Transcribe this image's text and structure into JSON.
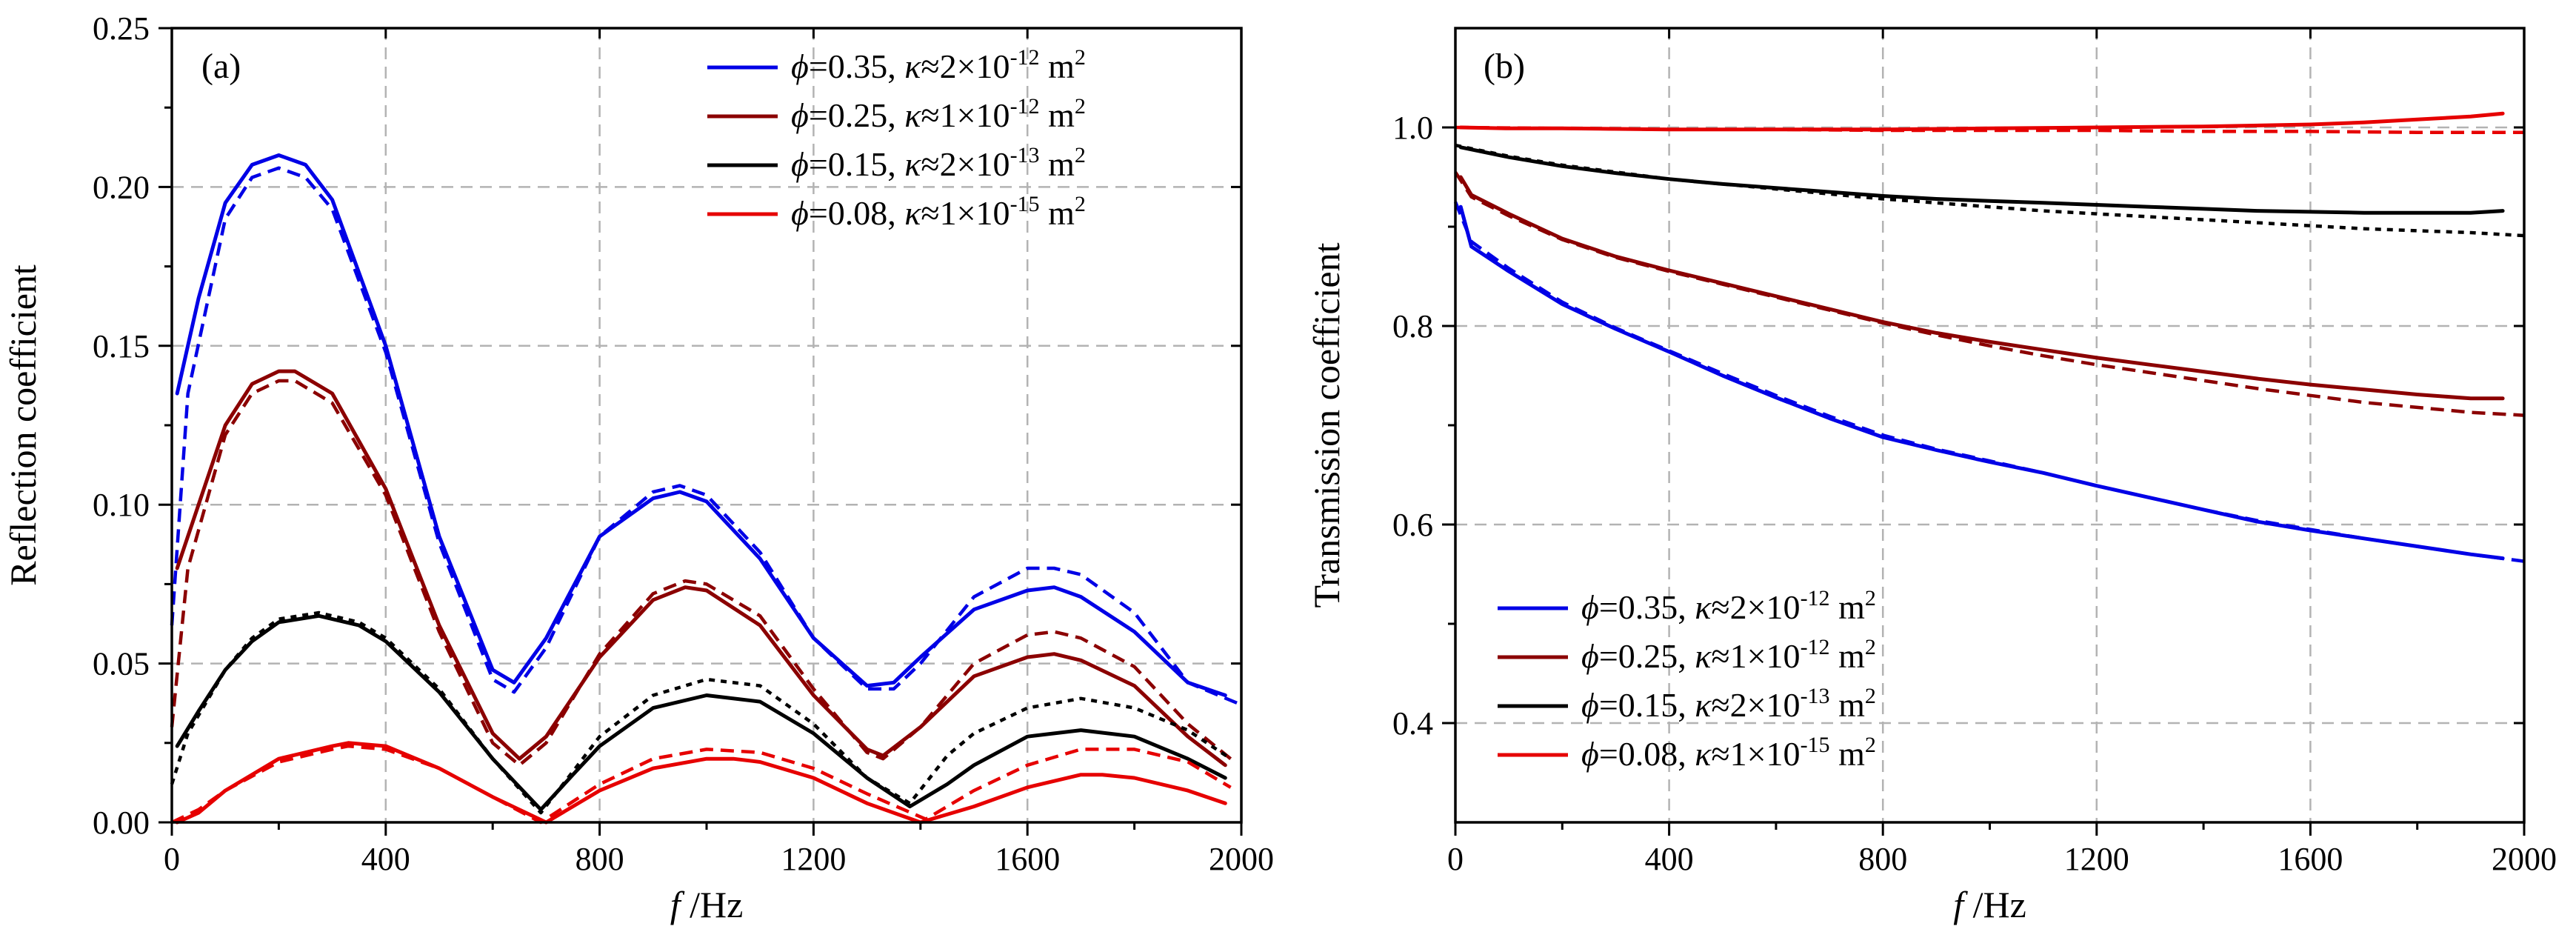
{
  "chart_data": [
    {
      "type": "line",
      "panel_label": "(a)",
      "xlabel": {
        "italic": "f",
        "rest": " /Hz"
      },
      "ylabel": "Reflection coefficient",
      "xlim": [
        0,
        2000
      ],
      "ylim": [
        0,
        0.25
      ],
      "xticks": [
        0,
        400,
        800,
        1200,
        1600,
        2000
      ],
      "xtick_labels": [
        "0",
        "400",
        "800",
        "1200",
        "1600",
        "2000"
      ],
      "yticks": [
        0,
        0.05,
        0.1,
        0.15,
        0.2,
        0.25
      ],
      "ytick_labels": [
        "0.00",
        "0.05",
        "0.10",
        "0.15",
        "0.20",
        "0.25"
      ],
      "grid": true,
      "legend_position": "top-right",
      "series": [
        {
          "name": "φ=0.35, κ≈2×10-12 m2",
          "color": "#0000e6",
          "style": "solid",
          "x": [
            10,
            50,
            100,
            150,
            200,
            250,
            300,
            400,
            500,
            600,
            640,
            700,
            800,
            900,
            950,
            1000,
            1100,
            1200,
            1300,
            1350,
            1400,
            1500,
            1600,
            1650,
            1700,
            1800,
            1900,
            1970
          ],
          "y": [
            0.135,
            0.165,
            0.195,
            0.207,
            0.21,
            0.207,
            0.196,
            0.15,
            0.09,
            0.048,
            0.044,
            0.058,
            0.09,
            0.102,
            0.104,
            0.101,
            0.083,
            0.058,
            0.043,
            0.044,
            0.052,
            0.067,
            0.073,
            0.074,
            0.071,
            0.06,
            0.044,
            0.04
          ]
        },
        {
          "name": "φ=0.35, κ≈2×10-12 m2 (dashed)",
          "color": "#0000e6",
          "style": "dashed",
          "x": [
            0,
            30,
            100,
            150,
            200,
            250,
            300,
            400,
            500,
            600,
            640,
            700,
            800,
            900,
            950,
            1000,
            1100,
            1200,
            1300,
            1350,
            1400,
            1500,
            1600,
            1650,
            1700,
            1800,
            1900,
            2000
          ],
          "y": [
            0.062,
            0.135,
            0.19,
            0.203,
            0.206,
            0.203,
            0.193,
            0.148,
            0.088,
            0.045,
            0.041,
            0.055,
            0.09,
            0.104,
            0.106,
            0.103,
            0.085,
            0.058,
            0.042,
            0.042,
            0.05,
            0.071,
            0.08,
            0.08,
            0.078,
            0.066,
            0.044,
            0.037
          ]
        },
        {
          "name": "φ=0.25, κ≈1×10-12 m2",
          "color": "#8b0000",
          "style": "solid",
          "x": [
            10,
            50,
            100,
            150,
            200,
            230,
            300,
            400,
            500,
            600,
            650,
            700,
            800,
            900,
            960,
            1000,
            1100,
            1200,
            1300,
            1330,
            1400,
            1500,
            1600,
            1650,
            1700,
            1800,
            1900,
            1970
          ],
          "y": [
            0.08,
            0.1,
            0.125,
            0.138,
            0.142,
            0.142,
            0.135,
            0.105,
            0.062,
            0.028,
            0.02,
            0.027,
            0.052,
            0.07,
            0.074,
            0.073,
            0.062,
            0.04,
            0.023,
            0.021,
            0.03,
            0.046,
            0.052,
            0.053,
            0.051,
            0.043,
            0.027,
            0.018
          ]
        },
        {
          "name": "φ=0.25, κ≈1×10-12 m2 (dashed)",
          "color": "#8b0000",
          "style": "dashed",
          "x": [
            0,
            30,
            100,
            150,
            200,
            230,
            300,
            400,
            500,
            600,
            650,
            700,
            800,
            900,
            960,
            1000,
            1100,
            1200,
            1300,
            1330,
            1400,
            1500,
            1600,
            1650,
            1700,
            1800,
            1900,
            1980
          ],
          "y": [
            0.03,
            0.08,
            0.122,
            0.135,
            0.139,
            0.139,
            0.132,
            0.103,
            0.06,
            0.025,
            0.018,
            0.025,
            0.053,
            0.072,
            0.076,
            0.075,
            0.065,
            0.042,
            0.022,
            0.02,
            0.03,
            0.05,
            0.059,
            0.06,
            0.058,
            0.049,
            0.031,
            0.02
          ]
        },
        {
          "name": "φ=0.15, κ≈2×10-13 m2",
          "color": "#000000",
          "style": "solid",
          "x": [
            10,
            50,
            100,
            150,
            200,
            275,
            350,
            400,
            500,
            600,
            690,
            750,
            800,
            900,
            1000,
            1100,
            1200,
            1300,
            1380,
            1450,
            1500,
            1600,
            1700,
            1800,
            1900,
            1970
          ],
          "y": [
            0.024,
            0.035,
            0.048,
            0.057,
            0.063,
            0.065,
            0.062,
            0.057,
            0.041,
            0.02,
            0.004,
            0.015,
            0.024,
            0.036,
            0.04,
            0.038,
            0.028,
            0.014,
            0.005,
            0.012,
            0.018,
            0.027,
            0.029,
            0.027,
            0.02,
            0.014
          ]
        },
        {
          "name": "φ=0.15, κ≈2×10-13 m2 (dashed)",
          "color": "#000000",
          "style": "dotted",
          "x": [
            0,
            30,
            100,
            150,
            200,
            275,
            350,
            400,
            500,
            600,
            690,
            750,
            800,
            900,
            1000,
            1100,
            1200,
            1300,
            1380,
            1450,
            1500,
            1600,
            1700,
            1800,
            1900,
            1980
          ],
          "y": [
            0.012,
            0.028,
            0.048,
            0.058,
            0.064,
            0.066,
            0.063,
            0.058,
            0.042,
            0.02,
            0.003,
            0.016,
            0.027,
            0.04,
            0.045,
            0.043,
            0.031,
            0.014,
            0.006,
            0.021,
            0.028,
            0.036,
            0.039,
            0.036,
            0.029,
            0.02
          ]
        },
        {
          "name": "φ=0.08, κ≈1×10-15 m2",
          "color": "#e60000",
          "style": "solid",
          "x": [
            10,
            50,
            100,
            200,
            300,
            330,
            400,
            500,
            600,
            700,
            800,
            900,
            1000,
            1050,
            1100,
            1200,
            1300,
            1400,
            1500,
            1600,
            1700,
            1740,
            1800,
            1900,
            1970
          ],
          "y": [
            0.0,
            0.003,
            0.01,
            0.02,
            0.024,
            0.025,
            0.024,
            0.017,
            0.008,
            0.0,
            0.01,
            0.017,
            0.02,
            0.02,
            0.019,
            0.014,
            0.006,
            0.0,
            0.005,
            0.011,
            0.015,
            0.015,
            0.014,
            0.01,
            0.006
          ]
        },
        {
          "name": "φ=0.08, κ≈1×10-15 m2 (dashed)",
          "color": "#e60000",
          "style": "dashed",
          "x": [
            0,
            50,
            100,
            200,
            300,
            330,
            400,
            500,
            600,
            690,
            800,
            900,
            1000,
            1100,
            1200,
            1300,
            1410,
            1500,
            1600,
            1700,
            1800,
            1900,
            1980
          ],
          "y": [
            0.0,
            0.004,
            0.01,
            0.019,
            0.023,
            0.024,
            0.023,
            0.017,
            0.008,
            0.0,
            0.012,
            0.02,
            0.023,
            0.022,
            0.017,
            0.009,
            0.001,
            0.01,
            0.018,
            0.023,
            0.023,
            0.019,
            0.011
          ]
        }
      ]
    },
    {
      "type": "line",
      "panel_label": "(b)",
      "xlabel": {
        "italic": "f",
        "rest": " /Hz"
      },
      "ylabel": "Transmission coefficient",
      "xlim": [
        0,
        2000
      ],
      "ylim": [
        0.3,
        1.1
      ],
      "xticks": [
        0,
        400,
        800,
        1200,
        1600,
        2000
      ],
      "xtick_labels": [
        "0",
        "400",
        "800",
        "1200",
        "1600",
        "2000"
      ],
      "yticks": [
        0.4,
        0.6,
        0.8,
        1.0
      ],
      "ytick_labels": [
        "0.4",
        "0.6",
        "0.8",
        "1.0"
      ],
      "grid": true,
      "legend_position": "bottom-left",
      "series": [
        {
          "name": "φ=0.35, κ≈2×10-12 m2",
          "color": "#0000e6",
          "style": "solid",
          "x": [
            10,
            30,
            100,
            200,
            300,
            400,
            500,
            600,
            700,
            800,
            900,
            1000,
            1100,
            1200,
            1300,
            1400,
            1500,
            1600,
            1700,
            1800,
            1900,
            1960
          ],
          "y": [
            0.92,
            0.88,
            0.855,
            0.822,
            0.797,
            0.774,
            0.75,
            0.728,
            0.707,
            0.688,
            0.675,
            0.663,
            0.652,
            0.639,
            0.627,
            0.615,
            0.603,
            0.594,
            0.586,
            0.578,
            0.57,
            0.566
          ]
        },
        {
          "name": "φ=0.35, κ≈2×10-12 m2 (dashed)",
          "color": "#0000e6",
          "style": "dashed",
          "x": [
            0,
            30,
            100,
            200,
            300,
            400,
            500,
            600,
            700,
            800,
            900,
            1000,
            1100,
            1200,
            1300,
            1400,
            1500,
            1600,
            1700,
            1800,
            1900,
            2000
          ],
          "y": [
            0.925,
            0.885,
            0.858,
            0.824,
            0.798,
            0.775,
            0.752,
            0.73,
            0.709,
            0.69,
            0.676,
            0.664,
            0.652,
            0.639,
            0.627,
            0.615,
            0.604,
            0.595,
            0.586,
            0.578,
            0.57,
            0.563
          ]
        },
        {
          "name": "φ=0.25, κ≈1×10-12 m2",
          "color": "#8b0000",
          "style": "solid",
          "x": [
            10,
            30,
            100,
            200,
            300,
            400,
            500,
            600,
            700,
            800,
            900,
            1000,
            1100,
            1200,
            1300,
            1400,
            1500,
            1600,
            1700,
            1800,
            1900,
            1960
          ],
          "y": [
            0.95,
            0.932,
            0.913,
            0.888,
            0.87,
            0.856,
            0.843,
            0.83,
            0.817,
            0.804,
            0.793,
            0.784,
            0.776,
            0.768,
            0.761,
            0.754,
            0.747,
            0.741,
            0.736,
            0.731,
            0.727,
            0.727
          ]
        },
        {
          "name": "φ=0.25, κ≈1×10-12 m2 (dashed)",
          "color": "#8b0000",
          "style": "dashed",
          "x": [
            0,
            30,
            100,
            200,
            300,
            400,
            500,
            600,
            700,
            800,
            900,
            1000,
            1100,
            1200,
            1300,
            1400,
            1500,
            1600,
            1700,
            1800,
            1900,
            2000
          ],
          "y": [
            0.955,
            0.93,
            0.911,
            0.887,
            0.869,
            0.855,
            0.842,
            0.829,
            0.816,
            0.803,
            0.791,
            0.78,
            0.77,
            0.761,
            0.753,
            0.745,
            0.737,
            0.73,
            0.723,
            0.718,
            0.713,
            0.71
          ]
        },
        {
          "name": "φ=0.15, κ≈2×10-13 m2",
          "color": "#000000",
          "style": "solid",
          "x": [
            10,
            100,
            200,
            300,
            400,
            500,
            600,
            700,
            800,
            900,
            1000,
            1100,
            1200,
            1300,
            1400,
            1500,
            1600,
            1700,
            1800,
            1900,
            1960
          ],
          "y": [
            0.98,
            0.97,
            0.961,
            0.954,
            0.948,
            0.943,
            0.939,
            0.935,
            0.931,
            0.928,
            0.926,
            0.924,
            0.922,
            0.92,
            0.918,
            0.916,
            0.915,
            0.914,
            0.914,
            0.914,
            0.916
          ]
        },
        {
          "name": "φ=0.15, κ≈2×10-13 m2 (dashed)",
          "color": "#000000",
          "style": "dotted",
          "x": [
            0,
            100,
            200,
            300,
            400,
            500,
            600,
            700,
            800,
            900,
            1000,
            1100,
            1200,
            1300,
            1400,
            1500,
            1600,
            1700,
            1800,
            1900,
            2000
          ],
          "y": [
            0.982,
            0.971,
            0.962,
            0.955,
            0.948,
            0.943,
            0.938,
            0.933,
            0.928,
            0.924,
            0.92,
            0.916,
            0.913,
            0.91,
            0.907,
            0.904,
            0.901,
            0.898,
            0.896,
            0.894,
            0.891
          ]
        },
        {
          "name": "φ=0.08, κ≈1×10-15 m2",
          "color": "#e60000",
          "style": "solid",
          "x": [
            10,
            100,
            200,
            400,
            600,
            800,
            1000,
            1200,
            1400,
            1600,
            1700,
            1800,
            1900,
            1960
          ],
          "y": [
            1.0,
            0.999,
            0.999,
            0.998,
            0.998,
            0.998,
            0.999,
            1.0,
            1.001,
            1.003,
            1.005,
            1.008,
            1.011,
            1.014
          ]
        },
        {
          "name": "φ=0.08, κ≈1×10-15 m2 (dashed)",
          "color": "#e60000",
          "style": "dashed",
          "x": [
            0,
            200,
            400,
            600,
            800,
            1000,
            1200,
            1400,
            1600,
            1800,
            2000
          ],
          "y": [
            1.0,
            0.999,
            0.998,
            0.998,
            0.997,
            0.997,
            0.997,
            0.996,
            0.996,
            0.995,
            0.995
          ]
        }
      ]
    }
  ],
  "legend_entries": [
    {
      "phi": "=0.35, ",
      "kappa": "≈2×10",
      "exp": "-12",
      "unit": " m",
      "unit_exp": "2",
      "color": "#0000e6"
    },
    {
      "phi": "=0.25, ",
      "kappa": "≈1×10",
      "exp": "-12",
      "unit": " m",
      "unit_exp": "2",
      "color": "#8b0000"
    },
    {
      "phi": "=0.15, ",
      "kappa": "≈2×10",
      "exp": "-13",
      "unit": " m",
      "unit_exp": "2",
      "color": "#000000"
    },
    {
      "phi": "=0.08, ",
      "kappa": "≈1×10",
      "exp": "-15",
      "unit": " m",
      "unit_exp": "2",
      "color": "#e60000"
    }
  ]
}
